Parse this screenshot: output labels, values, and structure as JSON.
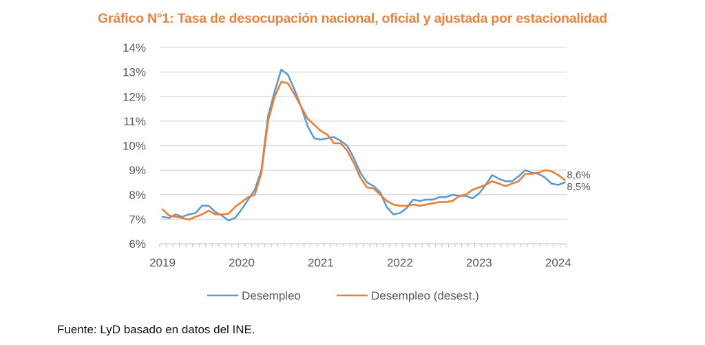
{
  "title": "Gráfico N°1: Tasa de desocupación nacional, oficial y ajustada por estacionalidad",
  "source": "Fuente: LyD basado en datos del INE.",
  "colors": {
    "title": "#E8823F",
    "series_1": "#5B9BD5",
    "series_2": "#ED7D31",
    "grid": "#D9D9D9",
    "axis_text": "#595959"
  },
  "chart_data": {
    "type": "line",
    "title": "Gráfico N°1: Tasa de desocupación nacional, oficial y ajustada por estacionalidad",
    "xlabel": "",
    "ylabel": "",
    "frequency": "monthly",
    "x_start": "2019-01",
    "x_end": "2024-02",
    "x_tick_labels": [
      "2019",
      "2020",
      "2021",
      "2022",
      "2023",
      "2024"
    ],
    "y_tick_labels": [
      "6%",
      "7%",
      "8%",
      "9%",
      "10%",
      "11%",
      "12%",
      "13%",
      "14%"
    ],
    "ylim": [
      6,
      14
    ],
    "y_step": 1,
    "grid": true,
    "legend_position": "bottom",
    "series": [
      {
        "name": "Desempleo",
        "color": "#5B9BD5",
        "end_label": "8,5%",
        "values": [
          7.1,
          7.05,
          7.2,
          7.1,
          7.2,
          7.25,
          7.55,
          7.55,
          7.3,
          7.15,
          6.95,
          7.05,
          7.4,
          7.8,
          8.2,
          9.0,
          11.2,
          12.2,
          13.1,
          12.9,
          12.3,
          11.6,
          10.8,
          10.3,
          10.25,
          10.3,
          10.35,
          10.2,
          10.0,
          9.5,
          8.9,
          8.5,
          8.35,
          8.1,
          7.5,
          7.2,
          7.25,
          7.45,
          7.8,
          7.75,
          7.8,
          7.8,
          7.9,
          7.9,
          8.0,
          7.95,
          7.95,
          7.85,
          8.05,
          8.4,
          8.8,
          8.65,
          8.55,
          8.55,
          8.75,
          9.0,
          8.9,
          8.85,
          8.7,
          8.45,
          8.4,
          8.5
        ]
      },
      {
        "name": "Desempleo (desest.)",
        "color": "#ED7D31",
        "end_label": "8,6%",
        "values": [
          7.4,
          7.15,
          7.1,
          7.05,
          6.98,
          7.1,
          7.2,
          7.35,
          7.2,
          7.2,
          7.22,
          7.5,
          7.7,
          7.9,
          8.0,
          8.9,
          11.0,
          12.0,
          12.6,
          12.55,
          12.1,
          11.6,
          11.1,
          10.85,
          10.6,
          10.45,
          10.1,
          10.1,
          9.8,
          9.3,
          8.7,
          8.3,
          8.25,
          8.0,
          7.75,
          7.6,
          7.55,
          7.55,
          7.6,
          7.55,
          7.6,
          7.65,
          7.7,
          7.7,
          7.75,
          7.95,
          8.0,
          8.2,
          8.3,
          8.4,
          8.55,
          8.45,
          8.35,
          8.45,
          8.55,
          8.85,
          8.85,
          8.9,
          9.0,
          8.95,
          8.8,
          8.6
        ]
      }
    ]
  }
}
